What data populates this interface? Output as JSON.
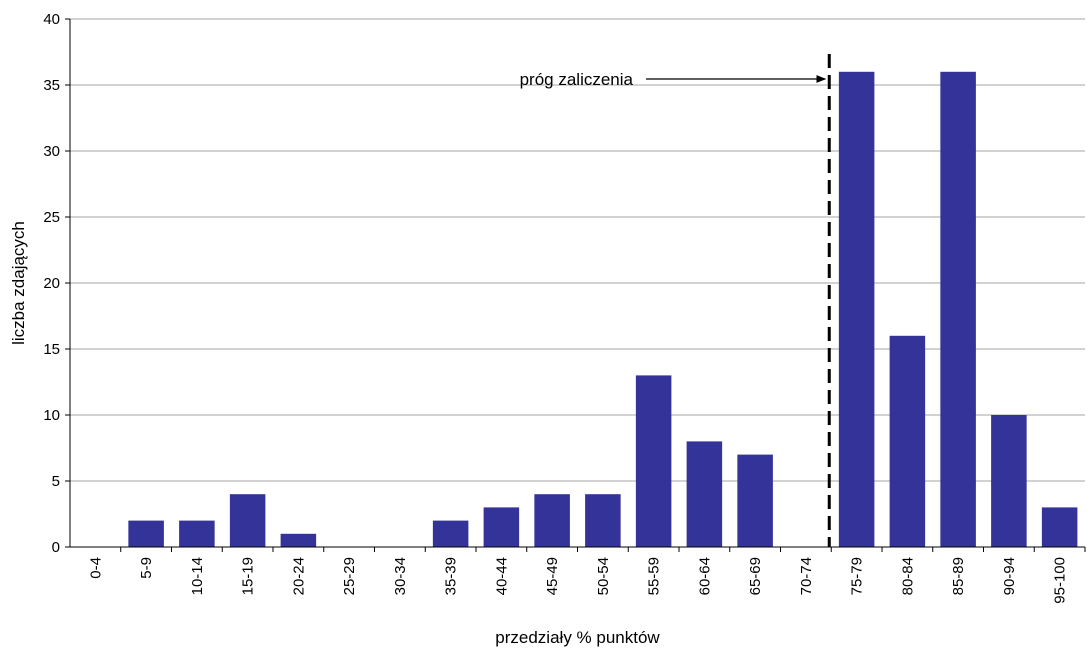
{
  "chart_data": {
    "type": "bar",
    "categories": [
      "0-4",
      "5-9",
      "10-14",
      "15-19",
      "20-24",
      "25-29",
      "30-34",
      "35-39",
      "40-44",
      "45-49",
      "50-54",
      "55-59",
      "60-64",
      "65-69",
      "70-74",
      "75-79",
      "80-84",
      "85-89",
      "90-94",
      "95-100"
    ],
    "values": [
      0,
      2,
      2,
      4,
      1,
      0,
      0,
      2,
      3,
      4,
      4,
      13,
      8,
      7,
      0,
      36,
      16,
      36,
      10,
      3
    ],
    "xlabel": "przedziały % punktów",
    "ylabel": "liczba zdających",
    "ylim": [
      0,
      40
    ],
    "yticks": [
      0,
      5,
      10,
      15,
      20,
      25,
      30,
      35,
      40
    ],
    "grid": true,
    "bar_color": "#333399",
    "grid_color": "#a6a6a6",
    "threshold": {
      "label": "próg zaliczenia",
      "position": "between 70-74 and 75-79",
      "style": "dashed vertical line with arrow"
    }
  }
}
